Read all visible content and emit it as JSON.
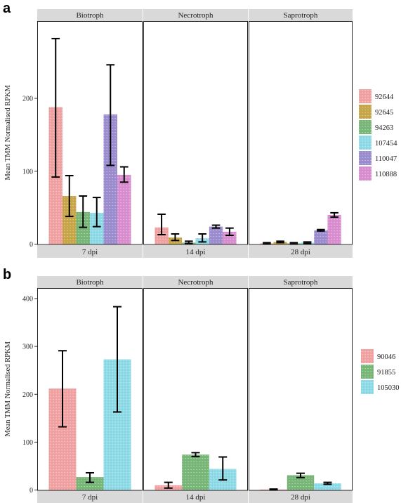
{
  "chart_data": [
    {
      "panel_label": "a",
      "type": "bar",
      "ylabel": "Mean TMM Normalised RPKM",
      "ylim": [
        0,
        300
      ],
      "yticks": [
        0,
        100,
        200
      ],
      "legend_position": "right",
      "facets": [
        {
          "top_label": "Biotroph",
          "bottom_label": "7 dpi"
        },
        {
          "top_label": "Necrotroph",
          "bottom_label": "14 dpi"
        },
        {
          "top_label": "Saprotroph",
          "bottom_label": "28 dpi"
        }
      ],
      "series": [
        {
          "name": "92644",
          "color": "#f2a3a3",
          "values": [
            188,
            23,
            1
          ],
          "err_low": [
            92,
            13,
            0
          ],
          "err_high": [
            282,
            41,
            2
          ]
        },
        {
          "name": "92645",
          "color": "#c8a84a",
          "values": [
            66,
            9,
            3
          ],
          "err_low": [
            38,
            5,
            2
          ],
          "err_high": [
            94,
            14,
            4
          ]
        },
        {
          "name": "94263",
          "color": "#7ab87a",
          "values": [
            44,
            2,
            1
          ],
          "err_low": [
            23,
            1,
            0
          ],
          "err_high": [
            66,
            4,
            2
          ]
        },
        {
          "name": "107454",
          "color": "#8fdbe8",
          "values": [
            43,
            8,
            2
          ],
          "err_low": [
            24,
            3,
            1
          ],
          "err_high": [
            64,
            14,
            3
          ]
        },
        {
          "name": "110047",
          "color": "#9c8ed0",
          "values": [
            178,
            24,
            19
          ],
          "err_low": [
            108,
            22,
            18
          ],
          "err_high": [
            246,
            26,
            20
          ]
        },
        {
          "name": "110888",
          "color": "#d98fd0",
          "values": [
            95,
            17,
            40
          ],
          "err_low": [
            85,
            12,
            37
          ],
          "err_high": [
            106,
            22,
            43
          ]
        }
      ]
    },
    {
      "panel_label": "b",
      "type": "bar",
      "ylabel": "Mean TMM Normalised RPKM",
      "ylim": [
        0,
        410
      ],
      "yticks": [
        0,
        100,
        200,
        300,
        400
      ],
      "legend_position": "right",
      "facets": [
        {
          "top_label": "Biotroph",
          "bottom_label": "7 dpi"
        },
        {
          "top_label": "Necrotroph",
          "bottom_label": "14 dpi"
        },
        {
          "top_label": "Saprotroph",
          "bottom_label": "28 dpi"
        }
      ],
      "series": [
        {
          "name": "90046",
          "color": "#f2a3a3",
          "values": [
            212,
            10,
            1
          ],
          "err_low": [
            132,
            4,
            0
          ],
          "err_high": [
            291,
            16,
            2
          ]
        },
        {
          "name": "91855",
          "color": "#7ab87a",
          "values": [
            27,
            74,
            31
          ],
          "err_low": [
            16,
            70,
            26
          ],
          "err_high": [
            36,
            78,
            35
          ]
        },
        {
          "name": "105030",
          "color": "#8fdbe8",
          "values": [
            273,
            44,
            14
          ],
          "err_low": [
            163,
            21,
            12
          ],
          "err_high": [
            383,
            69,
            16
          ]
        }
      ]
    }
  ]
}
